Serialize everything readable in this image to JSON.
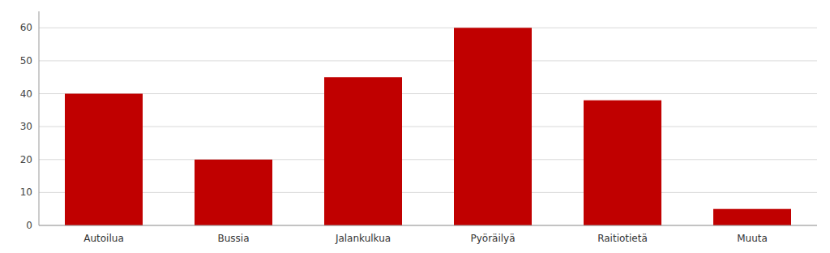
{
  "chart_data": {
    "type": "bar",
    "categories": [
      "Autoilua",
      "Bussia",
      "Jalankulkua",
      "Pyöräilyä",
      "Raitiotietä",
      "Muuta"
    ],
    "values": [
      40,
      20,
      45,
      60,
      38,
      5
    ],
    "color": "#C00000",
    "ylim": [
      0,
      65
    ],
    "yticks": [
      0,
      10,
      20,
      30,
      40,
      50,
      60
    ],
    "grid": true
  }
}
